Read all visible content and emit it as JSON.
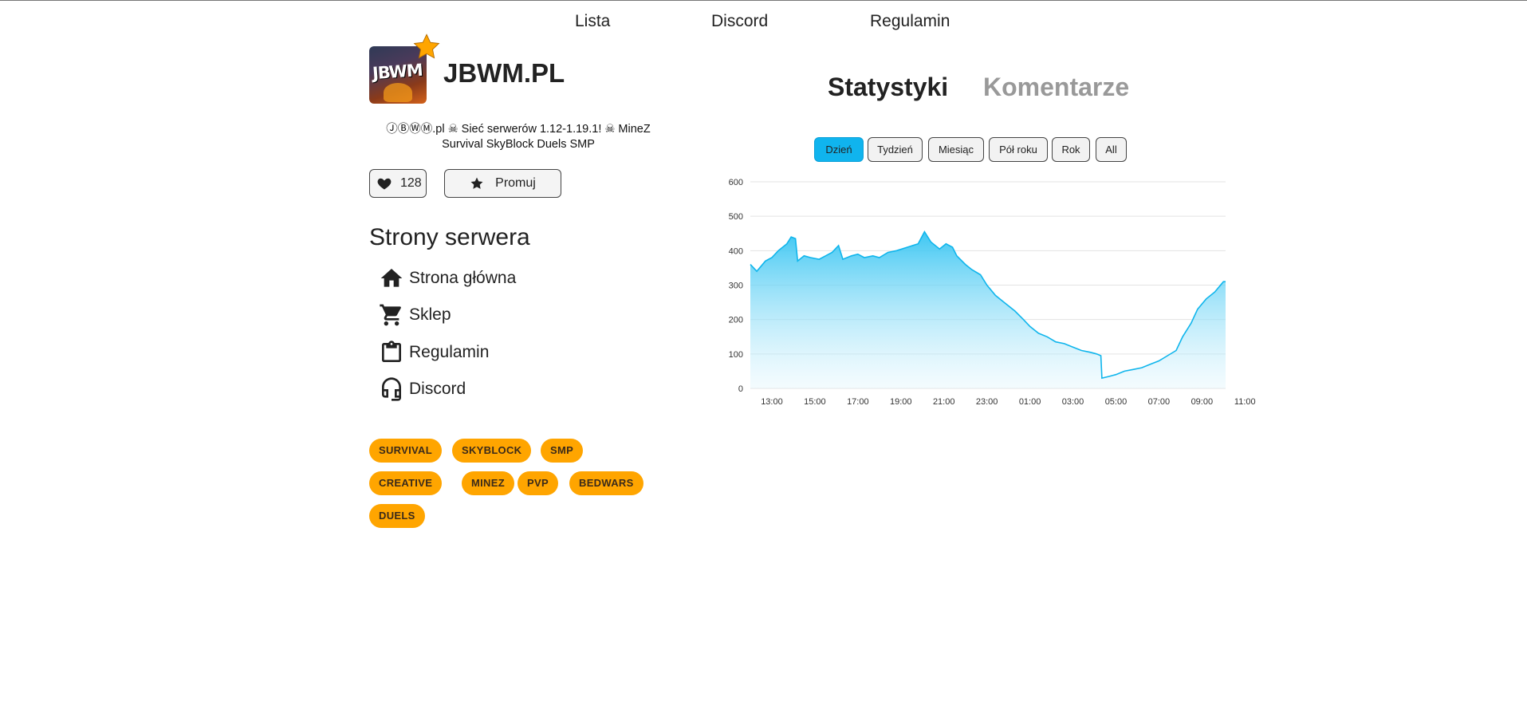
{
  "nav": {
    "lista": "Lista",
    "discord": "Discord",
    "regulamin": "Regulamin"
  },
  "server": {
    "logo_text": "JBWM",
    "name": "JBWM.PL",
    "description": "ⒿⒷⓌⓂ.pl ☠ Sieć serwerów 1.12-1.19.1! ☠ MineZ Survival SkyBlock Duels SMP",
    "likes": "128",
    "promote_label": "Promuj"
  },
  "pages": {
    "heading": "Strony serwera",
    "items": [
      {
        "label": "Strona główna",
        "icon": "home-icon"
      },
      {
        "label": "Sklep",
        "icon": "cart-icon"
      },
      {
        "label": "Regulamin",
        "icon": "clipboard-icon"
      },
      {
        "label": "Discord",
        "icon": "headset-icon"
      }
    ]
  },
  "tags": [
    "SURVIVAL",
    "SKYBLOCK",
    "SMP",
    "CREATIVE",
    "MINEZ",
    "PVP",
    "BEDWARS",
    "DUELS"
  ],
  "tabs": {
    "stats": "Statystyki",
    "comments": "Komentarze"
  },
  "ranges": [
    {
      "label": "Dzień",
      "active": true
    },
    {
      "label": "Tydzień",
      "active": false
    },
    {
      "label": "Miesiąc",
      "active": false
    },
    {
      "label": "Pół roku",
      "active": false
    },
    {
      "label": "Rok",
      "active": false
    },
    {
      "label": "All",
      "active": false
    }
  ],
  "colors": {
    "accent": "#10b4ee",
    "tag": "#ffa500",
    "line": "#0fb5ec"
  },
  "chart_data": {
    "type": "area",
    "x_ticks": [
      "13:00",
      "15:00",
      "17:00",
      "19:00",
      "21:00",
      "23:00",
      "01:00",
      "03:00",
      "05:00",
      "07:00",
      "09:00",
      "11:00"
    ],
    "y_ticks": [
      "0",
      "100",
      "200",
      "300",
      "400",
      "500",
      "600"
    ],
    "ylim": [
      0,
      600
    ],
    "x_hours_range": [
      12.0,
      12.1
    ],
    "grid": true,
    "points": [
      [
        12.0,
        360
      ],
      [
        12.3,
        340
      ],
      [
        12.7,
        370
      ],
      [
        13.0,
        380
      ],
      [
        13.3,
        400
      ],
      [
        13.7,
        420
      ],
      [
        13.9,
        440
      ],
      [
        14.1,
        435
      ],
      [
        14.2,
        370
      ],
      [
        14.5,
        385
      ],
      [
        14.8,
        380
      ],
      [
        15.2,
        375
      ],
      [
        15.5,
        385
      ],
      [
        15.8,
        395
      ],
      [
        16.1,
        415
      ],
      [
        16.3,
        375
      ],
      [
        16.7,
        385
      ],
      [
        17.0,
        390
      ],
      [
        17.3,
        380
      ],
      [
        17.7,
        385
      ],
      [
        18.0,
        380
      ],
      [
        18.4,
        395
      ],
      [
        18.8,
        400
      ],
      [
        19.3,
        410
      ],
      [
        19.8,
        420
      ],
      [
        20.1,
        455
      ],
      [
        20.4,
        425
      ],
      [
        20.8,
        405
      ],
      [
        21.1,
        420
      ],
      [
        21.4,
        410
      ],
      [
        21.6,
        385
      ],
      [
        22.0,
        360
      ],
      [
        22.3,
        345
      ],
      [
        22.7,
        330
      ],
      [
        23.0,
        300
      ],
      [
        23.4,
        270
      ],
      [
        23.8,
        250
      ],
      [
        24.3,
        225
      ],
      [
        24.7,
        200
      ],
      [
        25.0,
        180
      ],
      [
        25.4,
        160
      ],
      [
        25.8,
        150
      ],
      [
        26.2,
        135
      ],
      [
        26.6,
        130
      ],
      [
        27.0,
        120
      ],
      [
        27.4,
        110
      ],
      [
        27.8,
        105
      ],
      [
        28.1,
        100
      ],
      [
        28.3,
        95
      ],
      [
        28.35,
        30
      ],
      [
        28.7,
        35
      ],
      [
        29.0,
        40
      ],
      [
        29.4,
        50
      ],
      [
        29.8,
        55
      ],
      [
        30.2,
        60
      ],
      [
        30.6,
        70
      ],
      [
        31.0,
        80
      ],
      [
        31.4,
        95
      ],
      [
        31.8,
        110
      ],
      [
        32.1,
        150
      ],
      [
        32.5,
        190
      ],
      [
        32.8,
        230
      ],
      [
        33.2,
        260
      ],
      [
        33.6,
        280
      ],
      [
        34.0,
        310
      ],
      [
        34.1,
        310
      ]
    ]
  }
}
